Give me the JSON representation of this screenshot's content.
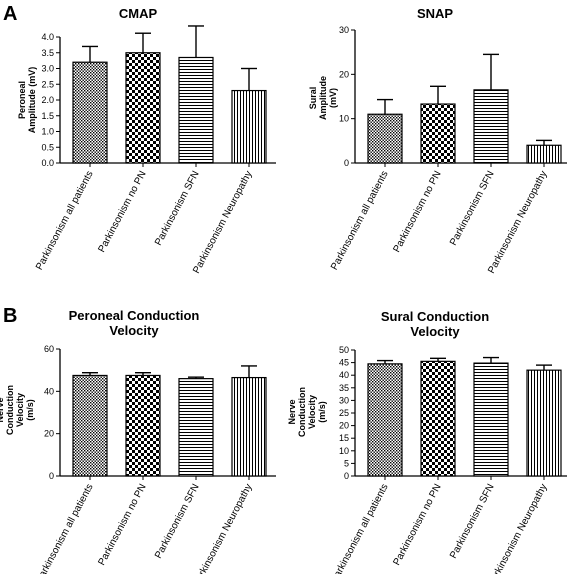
{
  "panel_labels": [
    "A",
    "B"
  ],
  "chart_data": [
    {
      "type": "bar",
      "title": "CMAP",
      "ylabel": "Peroneal Amplitude (mV)",
      "categories": [
        "Parkinsonism all patients",
        "Parkinsonism no PN",
        "Parkinsonism SFN",
        "Parkinsonism Neuropathy"
      ],
      "values": [
        3.2,
        3.5,
        3.35,
        2.3
      ],
      "errors": [
        0.5,
        0.62,
        1.0,
        0.7
      ],
      "ylim": [
        0,
        4
      ],
      "yticks": [
        0,
        0.5,
        1.0,
        1.5,
        2.0,
        2.5,
        3.0,
        3.5,
        4.0
      ],
      "ytick_labels": [
        "0.0",
        "0.5",
        "1.0",
        "1.5",
        "2.0",
        "2.5",
        "3.0",
        "3.5",
        "4.0"
      ],
      "patterns": [
        "dots",
        "checker",
        "hlines",
        "vlines"
      ]
    },
    {
      "type": "bar",
      "title": "SNAP",
      "ylabel": "Sural Amplitude (mV)",
      "categories": [
        "Parkinsonism all patients",
        "Parkinsonism no PN",
        "Parkinsonism SFN",
        "Parkinsonism Neuropathy"
      ],
      "values": [
        11,
        13.3,
        16.5,
        4
      ],
      "errors": [
        3.3,
        4.0,
        8.0,
        1.1
      ],
      "ylim": [
        0,
        30
      ],
      "yticks": [
        0,
        10,
        20,
        30
      ],
      "ytick_labels": [
        "0",
        "10",
        "20",
        "30"
      ],
      "patterns": [
        "dots",
        "checker",
        "hlines",
        "vlines"
      ]
    },
    {
      "type": "bar",
      "title": "Peroneal Conduction Velocity",
      "ylabel": "Nerve Conduction Velocity (m/s)",
      "categories": [
        "Parkinsonism all patients",
        "Parkinsonism no PN",
        "Parkinsonism SFN",
        "Parkinsonism Neuropathy"
      ],
      "values": [
        47.5,
        47.5,
        46,
        46.5
      ],
      "errors": [
        1.3,
        1.3,
        0.7,
        5.5
      ],
      "ylim": [
        0,
        60
      ],
      "yticks": [
        0,
        20,
        40,
        60
      ],
      "ytick_labels": [
        "0",
        "20",
        "40",
        "60"
      ],
      "patterns": [
        "dots",
        "checker",
        "hlines",
        "vlines"
      ]
    },
    {
      "type": "bar",
      "title": "Sural Conduction Velocity",
      "ylabel": "Nerve Conduction Velocity (m/s)",
      "categories": [
        "Parkinsonism all patients",
        "Parkinsonism no PN",
        "Parkinsonism SFN",
        "Parkinsonism Neuropathy"
      ],
      "values": [
        44.5,
        45.5,
        44.8,
        42
      ],
      "errors": [
        1.3,
        1.2,
        2.2,
        2.0
      ],
      "ylim": [
        0,
        50
      ],
      "yticks": [
        0,
        5,
        10,
        15,
        20,
        25,
        30,
        35,
        40,
        45,
        50
      ],
      "ytick_labels": [
        "0",
        "5",
        "10",
        "15",
        "20",
        "25",
        "30",
        "35",
        "40",
        "45",
        "50"
      ],
      "patterns": [
        "dots",
        "checker",
        "hlines",
        "vlines"
      ]
    }
  ]
}
